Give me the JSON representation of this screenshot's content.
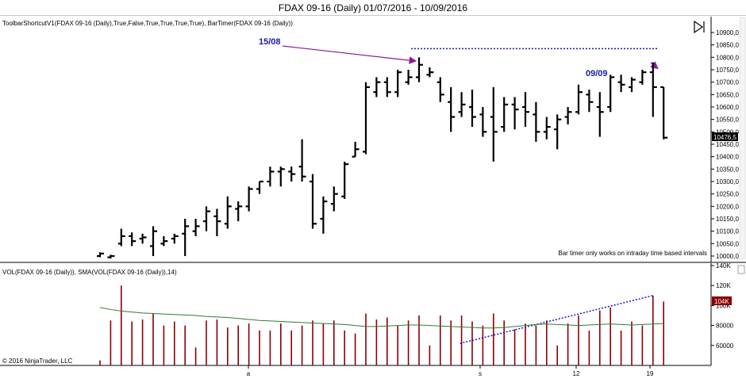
{
  "window": {
    "title": "FDAX 09-16 (Daily)  01/07/2016 - 10/09/2016"
  },
  "price_panel": {
    "indicator_label": "ToolbarShortcutV1(FDAX 09-16 (Daily),True,False,True,True,True,True), BarTimer(FDAX 09-16 (Daily))",
    "bar_timer_message": "Bar timer only works on intraday time based intervals",
    "last_price_label": "10476,5",
    "last_price_color": "#000000",
    "y_ticks": [
      "10900,0",
      "10850,0",
      "10800,0",
      "10750,0",
      "10700,0",
      "10650,0",
      "10600,0",
      "10550,0",
      "10500,0",
      "10450,0",
      "10400,0",
      "10350,0",
      "10300,0",
      "10250,0",
      "10200,0",
      "10150,0",
      "10100,0",
      "10050,0",
      "10000,0"
    ],
    "annotations": [
      {
        "text": "15/08",
        "color": "#1a1aa8"
      },
      {
        "text": "09/09",
        "color": "#1a1aa8"
      }
    ],
    "arrow_color": "#8a1a9a",
    "toggle_icon": "toolbar-toggle-icon"
  },
  "volume_panel": {
    "indicator_label": "VOL(FDAX 09-16 (Daily)), SMA(VOL(FDAX 09-16 (Daily)),14)",
    "last_volume_label": "104K",
    "last_volume_color": "#8b0000",
    "y_ticks": [
      "140K",
      "120K",
      "100K",
      "80000",
      "60000"
    ],
    "copyright": "© 2016 NinjaTrader, LLC",
    "volume_color": "#8b0000",
    "sma_color": "#2e7d32"
  },
  "x_axis": {
    "ticks": [
      "a",
      "s",
      "12",
      "19"
    ]
  },
  "trendline_color": "#1515d0",
  "chart_data": {
    "type": "ohlc",
    "title": "FDAX 09-16 (Daily)  01/07/2016 - 10/09/2016",
    "price_ylim": [
      9990,
      10960
    ],
    "volume_ylim": [
      40000,
      140000
    ],
    "bars": [
      {
        "o": 10000,
        "h": 10015,
        "l": 9995,
        "c": 10010,
        "v": 45000
      },
      {
        "o": 9995,
        "h": 10005,
        "l": 9990,
        "c": 10000,
        "v": 85000
      },
      {
        "o": 10050,
        "h": 10110,
        "l": 10040,
        "c": 10080,
        "v": 120000
      },
      {
        "o": 10080,
        "h": 10095,
        "l": 10040,
        "c": 10060,
        "v": 84000
      },
      {
        "o": 10070,
        "h": 10090,
        "l": 10050,
        "c": 10075,
        "v": 86000
      },
      {
        "o": 10040,
        "h": 10120,
        "l": 10000,
        "c": 10100,
        "v": 92000
      },
      {
        "o": 10050,
        "h": 10080,
        "l": 10040,
        "c": 10060,
        "v": 80000
      },
      {
        "o": 10070,
        "h": 10090,
        "l": 10050,
        "c": 10080,
        "v": 84000
      },
      {
        "o": 10090,
        "h": 10150,
        "l": 10000,
        "c": 10120,
        "v": 80000
      },
      {
        "o": 10100,
        "h": 10150,
        "l": 10080,
        "c": 10120,
        "v": 58000
      },
      {
        "o": 10140,
        "h": 10200,
        "l": 10100,
        "c": 10180,
        "v": 85000
      },
      {
        "o": 10160,
        "h": 10190,
        "l": 10080,
        "c": 10140,
        "v": 86000
      },
      {
        "o": 10130,
        "h": 10240,
        "l": 10110,
        "c": 10200,
        "v": 78000
      },
      {
        "o": 10190,
        "h": 10220,
        "l": 10140,
        "c": 10200,
        "v": 80000
      },
      {
        "o": 10200,
        "h": 10280,
        "l": 10180,
        "c": 10270,
        "v": 82000
      },
      {
        "o": 10270,
        "h": 10300,
        "l": 10250,
        "c": 10300,
        "v": 75000
      },
      {
        "o": 10300,
        "h": 10360,
        "l": 10280,
        "c": 10340,
        "v": 75000
      },
      {
        "o": 10340,
        "h": 10360,
        "l": 10280,
        "c": 10350,
        "v": 82000
      },
      {
        "o": 10340,
        "h": 10360,
        "l": 10300,
        "c": 10330,
        "v": 75000
      },
      {
        "o": 10360,
        "h": 10470,
        "l": 10300,
        "c": 10320,
        "v": 80000
      },
      {
        "o": 10300,
        "h": 10330,
        "l": 10110,
        "c": 10130,
        "v": 85000
      },
      {
        "o": 10150,
        "h": 10240,
        "l": 10090,
        "c": 10220,
        "v": 82000
      },
      {
        "o": 10210,
        "h": 10280,
        "l": 10180,
        "c": 10250,
        "v": 85000
      },
      {
        "o": 10240,
        "h": 10380,
        "l": 10230,
        "c": 10370,
        "v": 75000
      },
      {
        "o": 10400,
        "h": 10460,
        "l": 10400,
        "c": 10430,
        "v": 72000
      },
      {
        "o": 10420,
        "h": 10700,
        "l": 10410,
        "c": 10680,
        "v": 92000
      },
      {
        "o": 10660,
        "h": 10720,
        "l": 10640,
        "c": 10700,
        "v": 86000
      },
      {
        "o": 10700,
        "h": 10720,
        "l": 10640,
        "c": 10660,
        "v": 88000
      },
      {
        "o": 10660,
        "h": 10750,
        "l": 10640,
        "c": 10740,
        "v": 80000
      },
      {
        "o": 10700,
        "h": 10750,
        "l": 10690,
        "c": 10720,
        "v": 85000
      },
      {
        "o": 10720,
        "h": 10800,
        "l": 10700,
        "c": 10770,
        "v": 90000
      },
      {
        "o": 10730,
        "h": 10760,
        "l": 10720,
        "c": 10740,
        "v": 60000
      },
      {
        "o": 10700,
        "h": 10720,
        "l": 10620,
        "c": 10650,
        "v": 90000
      },
      {
        "o": 10620,
        "h": 10680,
        "l": 10500,
        "c": 10560,
        "v": 85000
      },
      {
        "o": 10580,
        "h": 10660,
        "l": 10560,
        "c": 10610,
        "v": 90000
      },
      {
        "o": 10600,
        "h": 10670,
        "l": 10520,
        "c": 10560,
        "v": 84000
      },
      {
        "o": 10570,
        "h": 10600,
        "l": 10480,
        "c": 10500,
        "v": 80000
      },
      {
        "o": 10560,
        "h": 10680,
        "l": 10380,
        "c": 10500,
        "v": 92000
      },
      {
        "o": 10520,
        "h": 10640,
        "l": 10500,
        "c": 10610,
        "v": 85000
      },
      {
        "o": 10610,
        "h": 10640,
        "l": 10510,
        "c": 10590,
        "v": 76000
      },
      {
        "o": 10600,
        "h": 10660,
        "l": 10520,
        "c": 10580,
        "v": 82000
      },
      {
        "o": 10570,
        "h": 10620,
        "l": 10460,
        "c": 10500,
        "v": 80000
      },
      {
        "o": 10500,
        "h": 10560,
        "l": 10470,
        "c": 10520,
        "v": 85000
      },
      {
        "o": 10510,
        "h": 10570,
        "l": 10430,
        "c": 10550,
        "v": 60000
      },
      {
        "o": 10560,
        "h": 10600,
        "l": 10530,
        "c": 10580,
        "v": 82000
      },
      {
        "o": 10580,
        "h": 10690,
        "l": 10570,
        "c": 10660,
        "v": 90000
      },
      {
        "o": 10650,
        "h": 10670,
        "l": 10580,
        "c": 10620,
        "v": 75000
      },
      {
        "o": 10600,
        "h": 10660,
        "l": 10480,
        "c": 10580,
        "v": 95000
      },
      {
        "o": 10600,
        "h": 10730,
        "l": 10580,
        "c": 10720,
        "v": 98000
      },
      {
        "o": 10700,
        "h": 10730,
        "l": 10660,
        "c": 10690,
        "v": 75000
      },
      {
        "o": 10680,
        "h": 10720,
        "l": 10660,
        "c": 10710,
        "v": 84000
      },
      {
        "o": 10700,
        "h": 10750,
        "l": 10690,
        "c": 10740,
        "v": 80000
      },
      {
        "o": 10740,
        "h": 10780,
        "l": 10560,
        "c": 10680,
        "v": 110000
      },
      {
        "o": 10680,
        "h": 10680,
        "l": 10470,
        "c": 10476.5,
        "v": 104000
      }
    ],
    "sma": [
      98000,
      96000,
      94500,
      93500,
      92500,
      92000,
      91500,
      91000,
      90500,
      90000,
      89000,
      88500,
      88000,
      87000,
      86000,
      85000,
      84500,
      84000,
      83500,
      83000,
      82500,
      82000,
      81500,
      81000,
      80000,
      79000,
      79000,
      79500,
      80000,
      80500,
      80500,
      80000,
      79500,
      79000,
      78500,
      78000,
      77500,
      77500,
      78000,
      79000,
      80000,
      81000,
      81500,
      81000,
      80500,
      80000,
      80500,
      81000,
      81500,
      81000,
      80500,
      81000,
      81500,
      82000
    ],
    "lines": [
      {
        "name": "resistance",
        "from_bar": 30,
        "to_bar": 52,
        "price": 10835
      },
      {
        "name": "volume-trend",
        "from_bar": 34,
        "to_bar": 52,
        "volume_from": 62000,
        "volume_to": 110000
      }
    ]
  }
}
